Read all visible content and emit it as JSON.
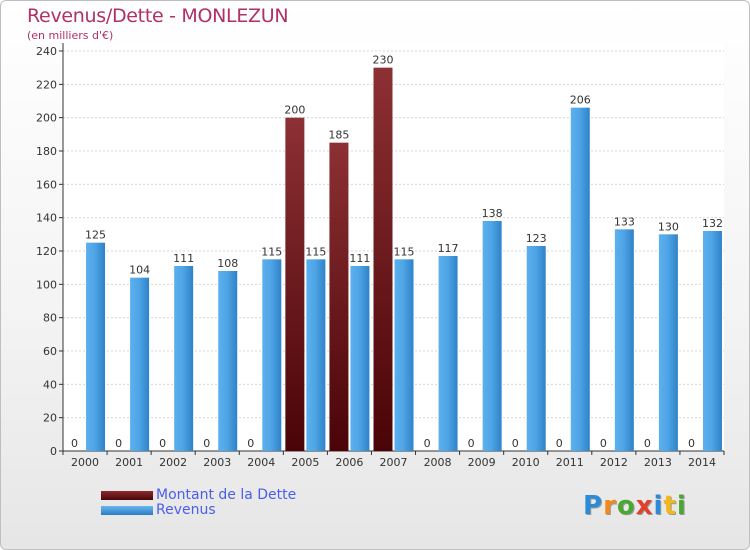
{
  "chart_data": {
    "type": "bar",
    "title": "Revenus/Dette - MONLEZUN",
    "subtitle": "(en milliers d'€)",
    "categories": [
      "2000",
      "2001",
      "2002",
      "2003",
      "2004",
      "2005",
      "2006",
      "2007",
      "2008",
      "2009",
      "2010",
      "2011",
      "2012",
      "2013",
      "2014"
    ],
    "series": [
      {
        "name": "Montant de la Dette",
        "color": "#7a1e22",
        "values": [
          0,
          0,
          0,
          0,
          0,
          200,
          185,
          230,
          0,
          0,
          0,
          0,
          0,
          0,
          0
        ]
      },
      {
        "name": "Revenus",
        "color": "#4d9fe0",
        "values": [
          125,
          104,
          111,
          108,
          115,
          115,
          111,
          115,
          117,
          138,
          123,
          206,
          133,
          130,
          132
        ]
      }
    ],
    "yticks": [
      "0",
      "20",
      "40",
      "60",
      "80",
      "100",
      "120",
      "140",
      "160",
      "180",
      "200",
      "220",
      "240"
    ],
    "ylim": [
      0,
      240
    ],
    "grid": true,
    "legend_position": "bottom-left"
  },
  "logo": {
    "letters": [
      "P",
      "r",
      "o",
      "x",
      "i",
      "t",
      "i"
    ],
    "colors": [
      "#2d8ad6",
      "#f08a1c",
      "#4aa832",
      "#e0402c",
      "#2d8ad6",
      "#f0b81c",
      "#4aa832"
    ]
  }
}
